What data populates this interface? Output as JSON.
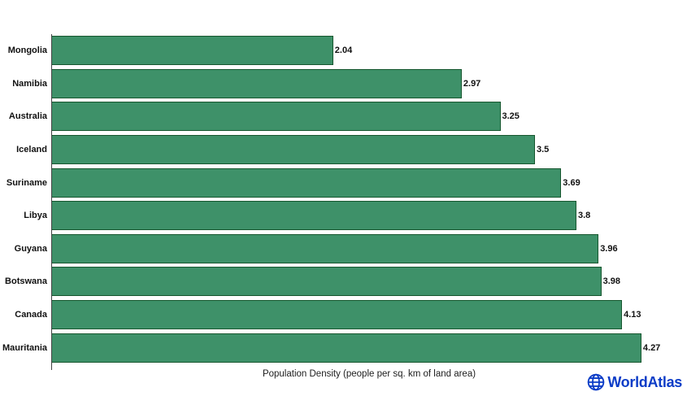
{
  "chart_data": {
    "type": "bar",
    "orientation": "horizontal",
    "title": "",
    "xlabel": "Population Density (people per sq. km of land area)",
    "ylabel": "",
    "categories": [
      "Mongolia",
      "Namibia",
      "Australia",
      "Iceland",
      "Suriname",
      "Libya",
      "Guyana",
      "Botswana",
      "Canada",
      "Mauritania"
    ],
    "values": [
      2.04,
      2.97,
      3.25,
      3.5,
      3.69,
      3.8,
      3.96,
      3.98,
      4.13,
      4.27
    ],
    "value_labels": [
      "2.04",
      "2.97",
      "3.25",
      "3.5",
      "3.69",
      "3.8",
      "3.96",
      "3.98",
      "4.13",
      "4.27"
    ],
    "xlim": [
      0,
      4.6
    ],
    "grid": false,
    "legend": null,
    "sort_order": "ascending"
  },
  "colors": {
    "background": "#FFFFFF",
    "bar_fill": "#3E9169",
    "bar_border": "#17572F",
    "axis": "#444444",
    "label": "#111111",
    "logo_blue": "#0B3CC7"
  },
  "branding": {
    "logo_text": "WorldAtlas",
    "logo_icon": "globe-icon"
  }
}
